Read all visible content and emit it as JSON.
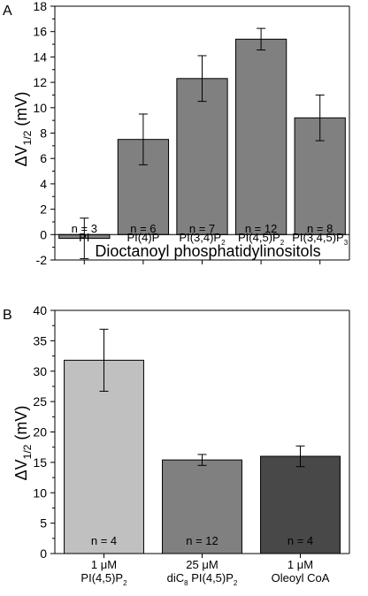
{
  "chart_data": [
    {
      "panel_label": "A",
      "type": "bar",
      "categories": [
        "PI",
        "PI(4)P",
        "PI(3,4)P₂",
        "PI(4,5)P₂",
        "PI(3,4,5)P₃"
      ],
      "values": [
        -0.3,
        7.5,
        12.3,
        15.4,
        9.2
      ],
      "errors": [
        1.6,
        2.0,
        1.8,
        0.85,
        1.8
      ],
      "n_labels": [
        "n = 3",
        "n = 6",
        "n = 7",
        "n = 12",
        "n = 8"
      ],
      "bar_colors": [
        "#808080",
        "#808080",
        "#808080",
        "#808080",
        "#808080"
      ],
      "xlabel": "Dioctanoyl phosphatidylinositols",
      "ylabel": "ΔV1/2 (mV)",
      "ylim": [
        -2,
        18
      ],
      "yticks": [
        "-2",
        "0",
        "2",
        "4",
        "6",
        "8",
        "10",
        "12",
        "14",
        "16",
        "18"
      ],
      "grid": false
    },
    {
      "panel_label": "B",
      "type": "bar",
      "categories": [
        [
          "1 μM",
          "PI(4,5)P₂"
        ],
        [
          "25 μM",
          "diC₈ PI(4,5)P₂"
        ],
        [
          "1 μM",
          "Oleoyl CoA"
        ]
      ],
      "values": [
        31.8,
        15.4,
        16.0
      ],
      "errors": [
        5.1,
        0.9,
        1.7
      ],
      "n_labels": [
        "n = 4",
        "n = 12",
        "n = 4"
      ],
      "bar_colors": [
        "#c0c0c0",
        "#808080",
        "#484848"
      ],
      "xlabel": "",
      "ylabel": "ΔV1/2 (mV)",
      "ylim": [
        0,
        40
      ],
      "yticks": [
        "0",
        "5",
        "10",
        "15",
        "20",
        "25",
        "30",
        "35",
        "40"
      ],
      "grid": false
    }
  ]
}
